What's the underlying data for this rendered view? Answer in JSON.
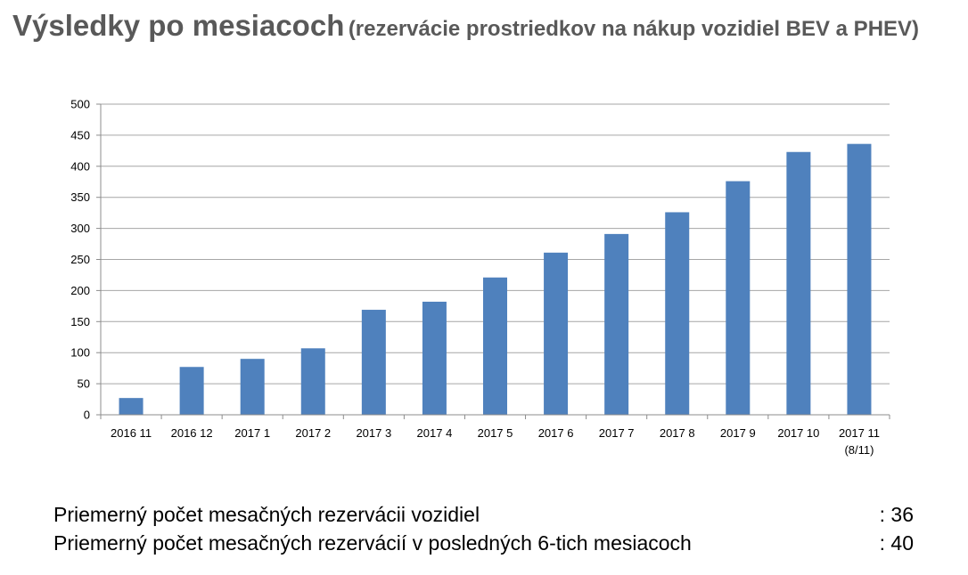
{
  "title": {
    "main": "Výsledky po mesiacoch",
    "sub": "(rezervácie prostriedkov na nákup vozidiel BEV a PHEV)"
  },
  "chart_data": {
    "type": "bar",
    "title": "",
    "xlabel": "",
    "ylabel": "",
    "ylim": [
      0,
      500
    ],
    "yticks": [
      0,
      50,
      100,
      150,
      200,
      250,
      300,
      350,
      400,
      450,
      500
    ],
    "grid": true,
    "legend": "none",
    "bar_color": "#4F81BD",
    "categories": [
      [
        "2016 11"
      ],
      [
        "2016 12"
      ],
      [
        "2017 1"
      ],
      [
        "2017 2"
      ],
      [
        "2017 3"
      ],
      [
        "2017 4"
      ],
      [
        "2017 5"
      ],
      [
        "2017 6"
      ],
      [
        "2017 7"
      ],
      [
        "2017 8"
      ],
      [
        "2017 9"
      ],
      [
        "2017 10"
      ],
      [
        "2017 11",
        "(8/11)"
      ]
    ],
    "values": [
      27,
      77,
      90,
      107,
      169,
      182,
      221,
      261,
      291,
      326,
      376,
      423,
      436
    ]
  },
  "stats": [
    {
      "label": "Priemerný počet mesačných rezervácii vozidiel",
      "value": ": 36"
    },
    {
      "label": "Priemerný počet mesačných rezervácií v posledných 6-tich mesiacoch",
      "value": ": 40"
    }
  ]
}
